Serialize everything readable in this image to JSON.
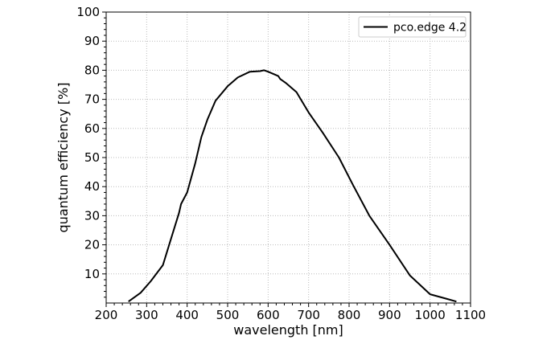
{
  "chart_data": {
    "type": "line",
    "xlabel": "wavelength [nm]",
    "ylabel": "quantum efficiency [%]",
    "xlim": [
      200,
      1100
    ],
    "ylim": [
      0,
      100
    ],
    "x_ticks": [
      "200",
      "300",
      "400",
      "500",
      "600",
      "700",
      "800",
      "900",
      "1000",
      "1100"
    ],
    "y_ticks": [
      "10",
      "20",
      "30",
      "40",
      "50",
      "60",
      "70",
      "80",
      "90",
      "100"
    ],
    "grid": "dotted",
    "legend_position": "top-right",
    "series": [
      {
        "name": "pco.edge 4.2",
        "color": "#000000",
        "x": [
          255,
          285,
          310,
          340,
          360,
          380,
          385,
          400,
          420,
          435,
          450,
          470,
          500,
          525,
          555,
          580,
          590,
          600,
          625,
          630,
          645,
          670,
          700,
          735,
          775,
          810,
          850,
          900,
          950,
          1000,
          1040,
          1065
        ],
        "y": [
          0.5,
          3.5,
          7.5,
          13,
          22,
          31,
          34,
          38,
          48,
          57,
          63,
          69.5,
          74.5,
          77.5,
          79.5,
          79.7,
          80,
          79.5,
          78,
          77,
          75.5,
          72.5,
          65.5,
          58.5,
          50,
          40.5,
          30,
          20,
          9.5,
          3,
          1.5,
          0.5
        ]
      }
    ]
  }
}
